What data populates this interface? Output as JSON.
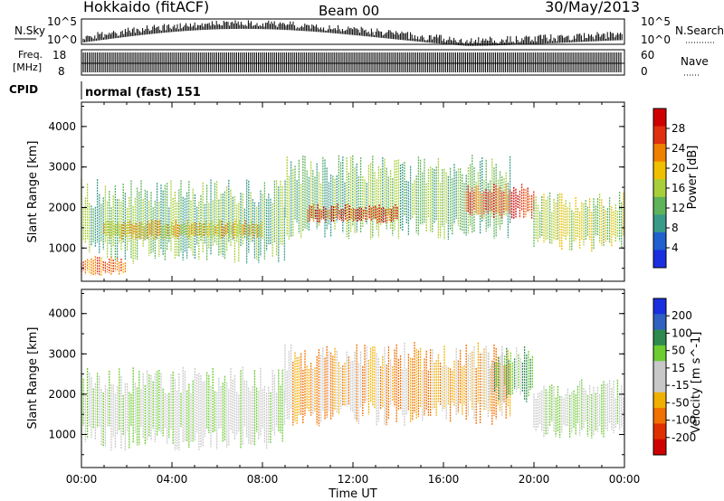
{
  "header": {
    "station": "Hokkaido (fitACF)",
    "beam": "Beam 00",
    "date": "30/May/2013"
  },
  "summary_panels": {
    "nsky_label": "N.Sky",
    "nsearch_label": "N.Search",
    "nsky_ticks": [
      "10^5",
      "10^0"
    ],
    "nsearch_ticks": [
      "10^5",
      "10^0"
    ],
    "freq_label_line1": "Freq.",
    "freq_label_line2": "[MHz]",
    "freq_ticks": [
      "18",
      "8"
    ],
    "nave_label": "Nave",
    "nave_ticks": [
      "60",
      "0"
    ],
    "cpid_label": "CPID",
    "cpid_text": "normal (fast) 151"
  },
  "colors": {
    "power_scale": [
      "#1a2fe0",
      "#2060d0",
      "#3a9a8a",
      "#5fb35a",
      "#a8cf3a",
      "#f0c000",
      "#f08000",
      "#e03010",
      "#d00000"
    ],
    "velocity_scale": [
      "#1a2fe0",
      "#3060c0",
      "#2f8a50",
      "#6ccc30",
      "#c8c8c8",
      "#c8c8c8",
      "#f0b000",
      "#f07000",
      "#e03000",
      "#d00000"
    ]
  },
  "chart_data": [
    {
      "type": "heatmap",
      "panel": "power",
      "xlabel": "",
      "ylabel": "Slant Range [km]",
      "x_ticks": [
        "00:00",
        "04:00",
        "08:00",
        "12:00",
        "16:00",
        "20:00",
        "00:00"
      ],
      "y_ticks": [
        1000,
        2000,
        3000,
        4000
      ],
      "xlim_hours": [
        0,
        24
      ],
      "ylim_km": [
        180,
        4600
      ],
      "colorbar_label": "Power [dB]",
      "colorbar_ticks": [
        4,
        8,
        12,
        16,
        20,
        24,
        28
      ],
      "colorbar_range": [
        0,
        32
      ],
      "echo_regions": [
        {
          "x_hours": [
            0,
            9
          ],
          "range_km": [
            600,
            2700
          ],
          "typical_power_db": 10
        },
        {
          "x_hours": [
            1,
            8
          ],
          "range_km": [
            1200,
            1700
          ],
          "typical_power_db": 18
        },
        {
          "x_hours": [
            9,
            19
          ],
          "range_km": [
            1200,
            3300
          ],
          "typical_power_db": 12
        },
        {
          "x_hours": [
            10,
            14
          ],
          "range_km": [
            1600,
            2100
          ],
          "typical_power_db": 26
        },
        {
          "x_hours": [
            17,
            20
          ],
          "range_km": [
            1700,
            2600
          ],
          "typical_power_db": 26
        },
        {
          "x_hours": [
            20,
            24
          ],
          "range_km": [
            900,
            2400
          ],
          "typical_power_db": 14
        },
        {
          "x_hours": [
            0,
            2
          ],
          "range_km": [
            300,
            800
          ],
          "typical_power_db": 24
        }
      ]
    },
    {
      "type": "heatmap",
      "panel": "velocity",
      "xlabel": "Time UT",
      "ylabel": "Slant Range [km]",
      "x_ticks": [
        "00:00",
        "04:00",
        "08:00",
        "12:00",
        "16:00",
        "20:00",
        "00:00"
      ],
      "y_ticks": [
        1000,
        2000,
        3000,
        4000
      ],
      "xlim_hours": [
        0,
        24
      ],
      "ylim_km": [
        180,
        4600
      ],
      "colorbar_label": "Velocity [m s^-1]",
      "colorbar_ticks": [
        200,
        100,
        50,
        15,
        -15,
        -50,
        -100,
        -200
      ],
      "colorbar_range": [
        -250,
        250
      ],
      "echo_regions": [
        {
          "x_hours": [
            0,
            9
          ],
          "range_km": [
            600,
            2700
          ],
          "typical_velocity": 0
        },
        {
          "x_hours": [
            9,
            19
          ],
          "range_km": [
            1200,
            3300
          ],
          "typical_velocity": -20
        },
        {
          "x_hours": [
            18,
            20
          ],
          "range_km": [
            1800,
            3200
          ],
          "typical_velocity": 40
        },
        {
          "x_hours": [
            20,
            24
          ],
          "range_km": [
            900,
            2400
          ],
          "typical_velocity": 0
        }
      ]
    }
  ]
}
